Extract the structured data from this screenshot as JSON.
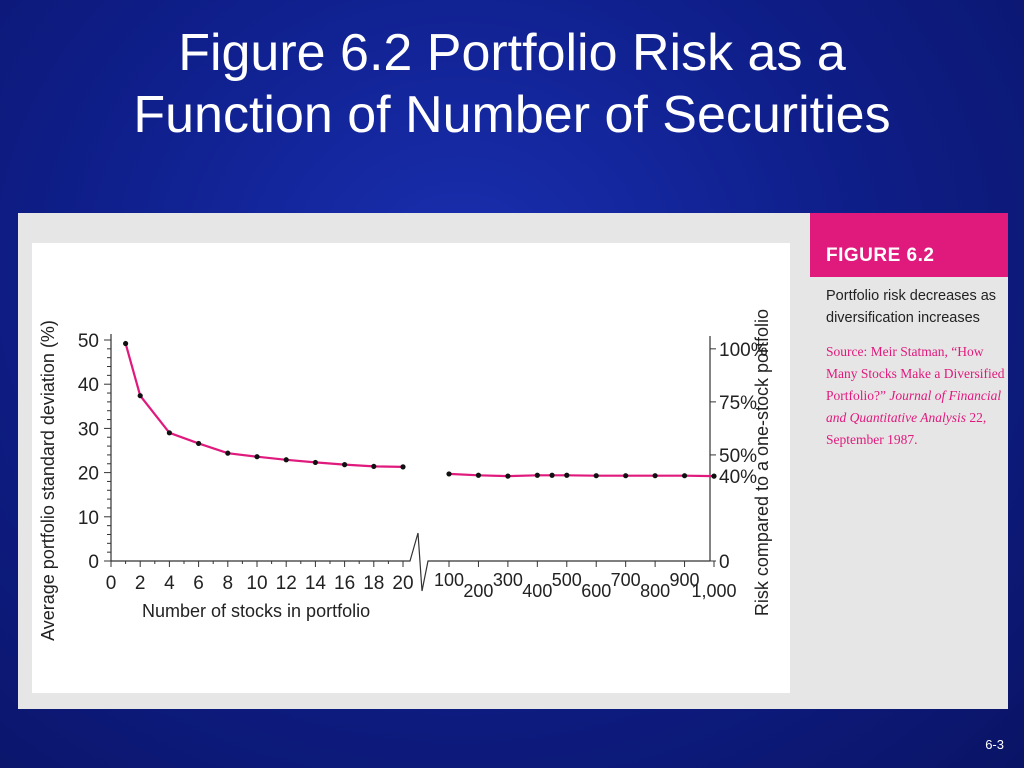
{
  "slide": {
    "title_line1": "Figure 6.2 Portfolio Risk as a",
    "title_line2": "Function of Number of Securities",
    "slide_number": "6-3"
  },
  "caption": {
    "figure_label": "FIGURE 6.2",
    "description": "Portfolio risk decreases as diversification increases",
    "source_prefix": "Source: Meir Statman, “How Many Stocks Make a Diversified Portfolio?” ",
    "source_journal": "Journal of Financial and Quantitative Analysis",
    "source_suffix": " 22, September 1987."
  },
  "colors": {
    "accent": "#e0197d",
    "background": "#0f1f8c",
    "line": "#e0197d",
    "marker": "#111111"
  },
  "chart_data": {
    "type": "line",
    "xlabel": "Number of stocks in portfolio",
    "ylabel": "Average portfolio standard deviation (%)",
    "ylabel_right": "Risk compared to a one-stock portfolio",
    "ylim": [
      0,
      50
    ],
    "yticks": [
      0,
      10,
      20,
      30,
      40,
      50
    ],
    "yticks_right": [
      {
        "value": 0,
        "label": "0"
      },
      {
        "value": 19.2,
        "label": "40%"
      },
      {
        "value": 24.0,
        "label": "50%"
      },
      {
        "value": 36.0,
        "label": "75%"
      },
      {
        "value": 48.0,
        "label": "100%"
      }
    ],
    "xticks_left": [
      "0",
      "2",
      "4",
      "6",
      "8",
      "10",
      "12",
      "14",
      "16",
      "18",
      "20"
    ],
    "xticks_right": [
      "100",
      "200",
      "300",
      "400",
      "500",
      "600",
      "700",
      "800",
      "900",
      "1,000"
    ],
    "grid": false,
    "series": [
      {
        "segment": "left",
        "x": [
          1,
          2,
          4,
          6,
          8,
          10,
          12,
          14,
          16,
          18,
          20
        ],
        "y": [
          49.2,
          37.4,
          29.0,
          26.6,
          24.4,
          23.6,
          22.9,
          22.3,
          21.8,
          21.4,
          21.3
        ]
      },
      {
        "segment": "right",
        "x": [
          100,
          200,
          300,
          400,
          450,
          500,
          600,
          700,
          800,
          900,
          1000
        ],
        "y": [
          19.7,
          19.4,
          19.2,
          19.4,
          19.4,
          19.4,
          19.3,
          19.3,
          19.3,
          19.3,
          19.2
        ]
      }
    ]
  }
}
